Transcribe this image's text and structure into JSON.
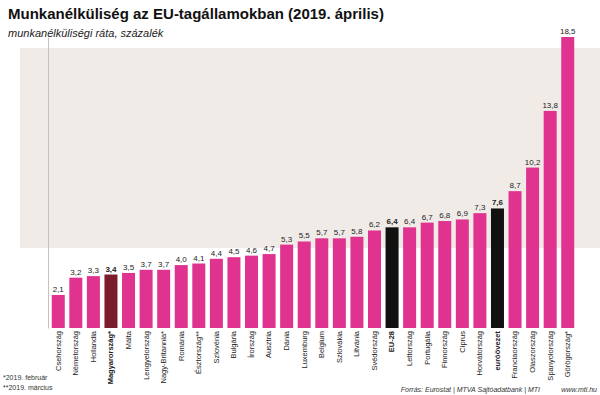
{
  "chart_data": {
    "type": "bar",
    "title": "Munkanélküliség az EU-tagállamokban (2019. április)",
    "subtitle": "munkanélküliségi ráta, százalék",
    "categories": [
      "Csehország",
      "Németország",
      "Hollandia",
      "Magyarország*",
      "Málta",
      "Lengyelország",
      "Nagy-Britannia*",
      "Románia",
      "Észtország**",
      "Szlovénia",
      "Bulgária",
      "Írország",
      "Ausztria",
      "Dánia",
      "Luxemburg",
      "Belgium",
      "Szlovákia",
      "Litvánia",
      "Svédország",
      "EU-28",
      "Lettország",
      "Portugália",
      "Finnország",
      "Ciprus",
      "Horvátország",
      "euróövezet",
      "Franciaország",
      "Olaszország",
      "Spanyolország",
      "Görögország*"
    ],
    "values": [
      2.1,
      3.2,
      3.3,
      3.4,
      3.5,
      3.7,
      3.7,
      4.0,
      4.1,
      4.4,
      4.5,
      4.6,
      4.7,
      5.3,
      5.5,
      5.7,
      5.7,
      5.8,
      6.2,
      6.4,
      6.4,
      6.7,
      6.8,
      6.9,
      7.3,
      7.6,
      8.7,
      10.2,
      13.8,
      18.5
    ],
    "value_labels": [
      "2,1",
      "3,2",
      "3,3",
      "3,4",
      "3,5",
      "3,7",
      "3,7",
      "4,0",
      "4,1",
      "4,4",
      "4,5",
      "4,6",
      "4,7",
      "5,3",
      "5,5",
      "5,7",
      "5,7",
      "5,8",
      "6,2",
      "6,4",
      "6,4",
      "6,7",
      "6,8",
      "6,9",
      "7,3",
      "7,6",
      "8,7",
      "10,2",
      "13,8",
      "18,5"
    ],
    "color": "#e0338f",
    "colors": [
      "#e0338f",
      "#e0338f",
      "#e0338f",
      "#7b1c2c",
      "#e0338f",
      "#e0338f",
      "#e0338f",
      "#e0338f",
      "#e0338f",
      "#e0338f",
      "#e0338f",
      "#e0338f",
      "#e0338f",
      "#e0338f",
      "#e0338f",
      "#e0338f",
      "#e0338f",
      "#e0338f",
      "#e0338f",
      "#111111",
      "#e0338f",
      "#e0338f",
      "#e0338f",
      "#e0338f",
      "#e0338f",
      "#111111",
      "#e0338f",
      "#e0338f",
      "#e0338f",
      "#e0338f"
    ],
    "ylim": [
      0,
      18.5
    ],
    "data_labels": true,
    "tick_labels": "x",
    "grid": false,
    "annotations": [
      "*2019. február",
      "**2019. március",
      "Forrás: Eurostat | MTVA Sajtóadatbank | MTI",
      "www.mti.hu"
    ]
  }
}
